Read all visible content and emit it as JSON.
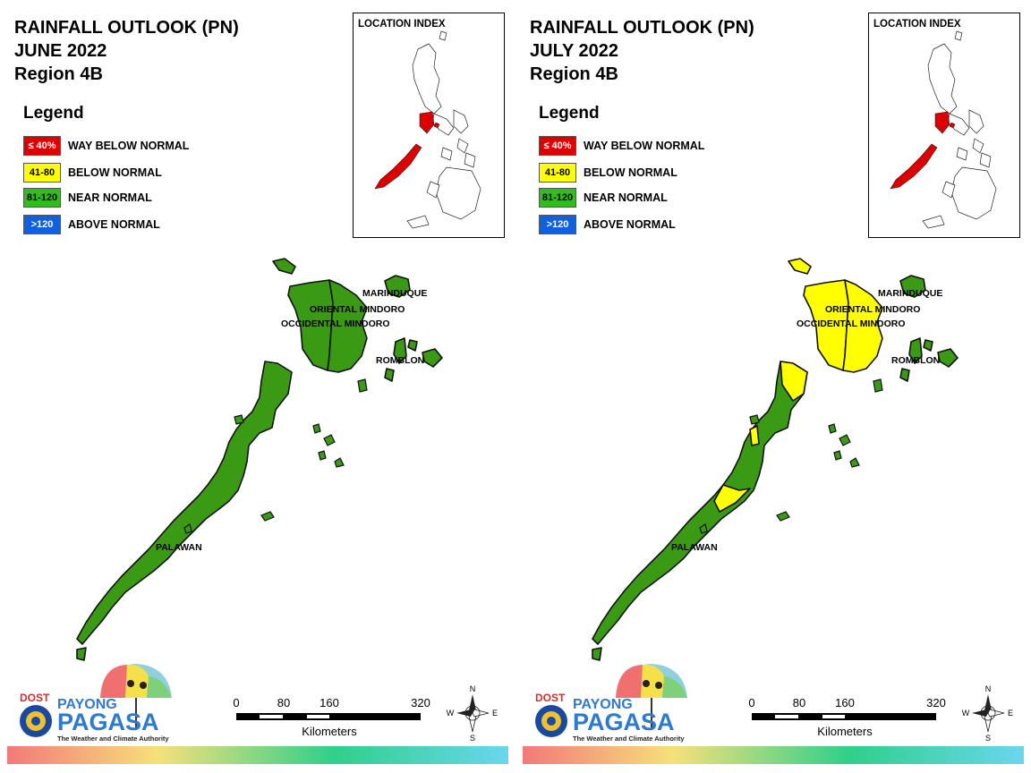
{
  "panels": [
    {
      "title_line1": "RAINFALL OUTLOOK (PN)",
      "title_line2": "JUNE 2022",
      "title_line3": "Region 4B",
      "legend_title": "Legend",
      "legend": [
        {
          "code": "≤ 40%",
          "label": "WAY BELOW NORMAL",
          "color": "#e00000",
          "text_color": "#ffffff"
        },
        {
          "code": "41-80",
          "label": "BELOW NORMAL",
          "color": "#ffff00",
          "text_color": "#000000"
        },
        {
          "code": "81-120",
          "label": "NEAR NORMAL",
          "color": "#33bb22",
          "text_color": "#000000"
        },
        {
          "code": ">120",
          "label": "ABOVE NORMAL",
          "color": "#1060e0",
          "text_color": "#ffffff"
        }
      ],
      "inset_title": "LOCATION INDEX",
      "provinces": {
        "marinduque": {
          "label": "MARINDUQUE",
          "category": "NEAR NORMAL"
        },
        "oriental_mindoro": {
          "label": "ORIENTAL MINDORO",
          "category": "NEAR NORMAL"
        },
        "occidental_mindoro": {
          "label": "OCCIDENTAL MINDORO",
          "category": "NEAR NORMAL"
        },
        "romblon": {
          "label": "ROMBLON",
          "category": "NEAR NORMAL"
        },
        "palawan": {
          "label": "PALAWAN",
          "category": "NEAR NORMAL"
        }
      },
      "scale": {
        "ticks": [
          "0",
          "80",
          "160",
          "320"
        ],
        "unit": "Kilometers"
      },
      "compass": {
        "n": "N",
        "s": "S",
        "e": "E",
        "w": "W"
      },
      "logo": {
        "dost": "DOST",
        "payong": "PAYONG",
        "pagasa": "PAGASA",
        "tagline": "The Weather and Climate Authority"
      }
    },
    {
      "title_line1": "RAINFALL OUTLOOK (PN)",
      "title_line2": "JULY 2022",
      "title_line3": "Region 4B",
      "legend_title": "Legend",
      "legend": [
        {
          "code": "≤ 40%",
          "label": "WAY BELOW NORMAL",
          "color": "#e00000",
          "text_color": "#ffffff"
        },
        {
          "code": "41-80",
          "label": "BELOW NORMAL",
          "color": "#ffff00",
          "text_color": "#000000"
        },
        {
          "code": "81-120",
          "label": "NEAR NORMAL",
          "color": "#33bb22",
          "text_color": "#000000"
        },
        {
          "code": ">120",
          "label": "ABOVE NORMAL",
          "color": "#1060e0",
          "text_color": "#ffffff"
        }
      ],
      "inset_title": "LOCATION INDEX",
      "provinces": {
        "marinduque": {
          "label": "MARINDUQUE",
          "category": "NEAR NORMAL"
        },
        "oriental_mindoro": {
          "label": "ORIENTAL MINDORO",
          "category": "BELOW NORMAL"
        },
        "occidental_mindoro": {
          "label": "OCCIDENTAL MINDORO",
          "category": "BELOW NORMAL"
        },
        "romblon": {
          "label": "ROMBLON",
          "category": "NEAR NORMAL"
        },
        "palawan": {
          "label": "PALAWAN",
          "category": "NEAR NORMAL"
        }
      },
      "scale": {
        "ticks": [
          "0",
          "80",
          "160",
          "320"
        ],
        "unit": "Kilometers"
      },
      "compass": {
        "n": "N",
        "s": "S",
        "e": "E",
        "w": "W"
      },
      "logo": {
        "dost": "DOST",
        "payong": "PAYONG",
        "pagasa": "PAGASA",
        "tagline": "The Weather and Climate Authority"
      }
    }
  ],
  "colors": {
    "map_green": "#3b9a14",
    "map_yellow": "#ffff00",
    "highlight_red": "#dd0000",
    "outline": "#111111"
  }
}
